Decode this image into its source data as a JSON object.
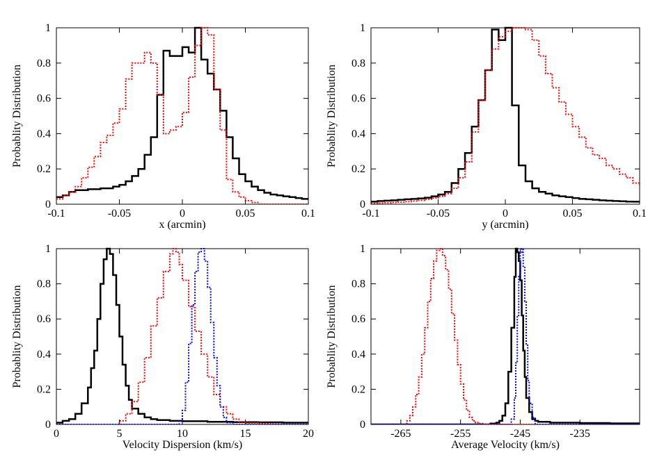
{
  "chart_data": [
    {
      "type": "line",
      "step": true,
      "xlabel": "x (arcmin)",
      "ylabel": "Probablity Distribution",
      "xlim": [
        -0.1,
        0.1
      ],
      "ylim": [
        0,
        1
      ],
      "xticks": [
        -0.1,
        -0.05,
        0,
        0.05,
        0.1
      ],
      "xtick_labels": [
        "-0.1",
        "-0.05",
        "0",
        "0.05",
        "0.1"
      ],
      "yticks": [
        0,
        0.2,
        0.4,
        0.6,
        0.8,
        1
      ],
      "ytick_labels": [
        "0",
        "0.2",
        "0.4",
        "0.6",
        "0.8",
        "1"
      ],
      "series": [
        {
          "color": "#000000",
          "dash": "solid",
          "width": 2.5,
          "x": [
            -0.1,
            -0.095,
            -0.09,
            -0.085,
            -0.08,
            -0.075,
            -0.07,
            -0.065,
            -0.06,
            -0.055,
            -0.05,
            -0.045,
            -0.04,
            -0.035,
            -0.03,
            -0.025,
            -0.02,
            -0.015,
            -0.01,
            -0.005,
            0,
            0.005,
            0.01,
            0.015,
            0.02,
            0.025,
            0.03,
            0.035,
            0.04,
            0.045,
            0.05,
            0.055,
            0.06,
            0.065,
            0.07,
            0.075,
            0.08,
            0.085,
            0.09,
            0.095,
            0.1
          ],
          "y": [
            0.04,
            0.05,
            0.07,
            0.08,
            0.08,
            0.085,
            0.085,
            0.09,
            0.09,
            0.1,
            0.11,
            0.13,
            0.16,
            0.2,
            0.28,
            0.38,
            0.62,
            0.87,
            0.84,
            0.84,
            0.89,
            0.86,
            1.0,
            0.82,
            0.74,
            0.65,
            0.53,
            0.38,
            0.26,
            0.17,
            0.13,
            0.1,
            0.08,
            0.065,
            0.055,
            0.05,
            0.045,
            0.04,
            0.035,
            0.03,
            0.03
          ]
        },
        {
          "color": "#ff0000",
          "dash": "dotted",
          "width": 2,
          "x": [
            -0.1,
            -0.095,
            -0.09,
            -0.085,
            -0.08,
            -0.075,
            -0.07,
            -0.065,
            -0.06,
            -0.055,
            -0.05,
            -0.045,
            -0.04,
            -0.035,
            -0.03,
            -0.025,
            -0.02,
            -0.015,
            -0.01,
            -0.005,
            0,
            0.005,
            0.01,
            0.015,
            0.02,
            0.025,
            0.03,
            0.035,
            0.04,
            0.045,
            0.05,
            0.055,
            0.06,
            0.065,
            0.07,
            0.075,
            0.08,
            0.085,
            0.09,
            0.095,
            0.1
          ],
          "y": [
            0.03,
            0.05,
            0.07,
            0.1,
            0.15,
            0.21,
            0.27,
            0.35,
            0.39,
            0.46,
            0.54,
            0.71,
            0.8,
            0.8,
            0.86,
            0.8,
            0.62,
            0.4,
            0.42,
            0.44,
            0.52,
            0.72,
            0.9,
            1.0,
            0.96,
            0.65,
            0.42,
            0.14,
            0.07,
            0.04,
            0.02,
            0.01,
            0.0,
            0.0,
            0.0,
            0.0,
            0.0,
            0.0,
            0.0,
            0.0,
            0.0
          ]
        }
      ]
    },
    {
      "type": "line",
      "step": true,
      "xlabel": "y (arcmin)",
      "ylabel": "Probablity Distribution",
      "xlim": [
        -0.1,
        0.1
      ],
      "ylim": [
        0,
        1
      ],
      "xticks": [
        -0.1,
        -0.05,
        0,
        0.05,
        0.1
      ],
      "xtick_labels": [
        "-0.1",
        "-0.05",
        "0",
        "0.05",
        "0.1"
      ],
      "yticks": [
        0,
        0.2,
        0.4,
        0.6,
        0.8,
        1
      ],
      "ytick_labels": [
        "0",
        "0.2",
        "0.4",
        "0.6",
        "0.8",
        "1"
      ],
      "series": [
        {
          "color": "#000000",
          "dash": "solid",
          "width": 2.5,
          "x": [
            -0.1,
            -0.095,
            -0.09,
            -0.085,
            -0.08,
            -0.075,
            -0.07,
            -0.065,
            -0.06,
            -0.055,
            -0.05,
            -0.045,
            -0.04,
            -0.035,
            -0.03,
            -0.025,
            -0.02,
            -0.015,
            -0.01,
            -0.005,
            0,
            0.005,
            0.01,
            0.015,
            0.02,
            0.025,
            0.03,
            0.035,
            0.04,
            0.045,
            0.05,
            0.055,
            0.06,
            0.065,
            0.07,
            0.075,
            0.08,
            0.085,
            0.09,
            0.095,
            0.1
          ],
          "y": [
            0.015,
            0.018,
            0.02,
            0.022,
            0.025,
            0.028,
            0.03,
            0.033,
            0.037,
            0.045,
            0.055,
            0.07,
            0.12,
            0.2,
            0.29,
            0.44,
            0.59,
            0.76,
            0.99,
            0.93,
            1.0,
            0.56,
            0.22,
            0.13,
            0.09,
            0.07,
            0.06,
            0.05,
            0.045,
            0.04,
            0.035,
            0.03,
            0.028,
            0.025,
            0.022,
            0.02,
            0.018,
            0.017,
            0.015,
            0.014,
            0.012
          ]
        },
        {
          "color": "#ff0000",
          "dash": "dotted",
          "width": 2,
          "x": [
            -0.1,
            -0.095,
            -0.09,
            -0.085,
            -0.08,
            -0.075,
            -0.07,
            -0.065,
            -0.06,
            -0.055,
            -0.05,
            -0.045,
            -0.04,
            -0.035,
            -0.03,
            -0.025,
            -0.02,
            -0.015,
            -0.01,
            -0.005,
            0,
            0.005,
            0.01,
            0.015,
            0.02,
            0.025,
            0.03,
            0.035,
            0.04,
            0.045,
            0.05,
            0.055,
            0.06,
            0.065,
            0.07,
            0.075,
            0.08,
            0.085,
            0.09,
            0.095,
            0.1
          ],
          "y": [
            0.005,
            0.007,
            0.008,
            0.01,
            0.012,
            0.015,
            0.018,
            0.022,
            0.028,
            0.035,
            0.045,
            0.06,
            0.09,
            0.15,
            0.24,
            0.41,
            0.59,
            0.76,
            0.88,
            0.95,
            0.98,
            1.0,
            1.0,
            0.99,
            0.93,
            0.84,
            0.74,
            0.66,
            0.58,
            0.51,
            0.44,
            0.38,
            0.32,
            0.28,
            0.26,
            0.22,
            0.2,
            0.17,
            0.15,
            0.12,
            0.1
          ]
        }
      ]
    },
    {
      "type": "line",
      "step": true,
      "xlabel": "Velocity Dispersion (km/s)",
      "ylabel": "Probablity Distribution",
      "xlim": [
        0,
        20
      ],
      "ylim": [
        0,
        1
      ],
      "xticks": [
        0,
        5,
        10,
        15,
        20
      ],
      "xtick_labels": [
        "0",
        "5",
        "10",
        "15",
        "20"
      ],
      "yticks": [
        0,
        0.2,
        0.4,
        0.6,
        0.8,
        1
      ],
      "ytick_labels": [
        "0",
        "0.2",
        "0.4",
        "0.6",
        "0.8",
        "1"
      ],
      "series": [
        {
          "color": "#000000",
          "dash": "solid",
          "width": 2.5,
          "x": [
            0,
            0.5,
            1,
            1.5,
            2,
            2.5,
            2.75,
            3,
            3.25,
            3.5,
            3.75,
            4,
            4.25,
            4.5,
            4.75,
            5,
            5.25,
            5.5,
            5.75,
            6,
            6.5,
            7,
            7.5,
            8,
            9,
            10,
            12,
            14,
            16,
            18,
            20
          ],
          "y": [
            0.01,
            0.02,
            0.03,
            0.06,
            0.12,
            0.21,
            0.32,
            0.42,
            0.6,
            0.8,
            0.94,
            1.0,
            0.97,
            0.85,
            0.68,
            0.5,
            0.34,
            0.22,
            0.14,
            0.09,
            0.06,
            0.04,
            0.03,
            0.025,
            0.02,
            0.018,
            0.015,
            0.013,
            0.012,
            0.01,
            0.01
          ]
        },
        {
          "color": "#ff0000",
          "dash": "dotted",
          "width": 2,
          "x": [
            0,
            4.5,
            5,
            5.5,
            6,
            6.5,
            7,
            7.5,
            8,
            8.5,
            9,
            9.25,
            9.5,
            9.75,
            10,
            10.5,
            11,
            11.5,
            12,
            12.5,
            13,
            13.5,
            14,
            14.5,
            15,
            16,
            17,
            18,
            20
          ],
          "y": [
            0.0,
            0.0,
            0.02,
            0.06,
            0.13,
            0.24,
            0.38,
            0.56,
            0.72,
            0.87,
            0.97,
            1.0,
            0.98,
            0.91,
            0.82,
            0.67,
            0.53,
            0.4,
            0.27,
            0.17,
            0.1,
            0.06,
            0.03,
            0.015,
            0.008,
            0.004,
            0.002,
            0.0,
            0.0
          ]
        },
        {
          "color": "#0000ff",
          "dash": "dotted",
          "width": 2,
          "x": [
            0,
            9.5,
            9.75,
            10,
            10.25,
            10.5,
            10.75,
            11,
            11.25,
            11.5,
            11.75,
            12,
            12.25,
            12.5,
            12.75,
            13,
            13.25,
            13.5,
            14,
            20
          ],
          "y": [
            0.0,
            0.0,
            0.02,
            0.08,
            0.24,
            0.46,
            0.68,
            0.87,
            0.98,
            1.0,
            0.93,
            0.78,
            0.58,
            0.38,
            0.22,
            0.1,
            0.04,
            0.01,
            0.0,
            0.0
          ]
        }
      ]
    },
    {
      "type": "line",
      "step": true,
      "xlabel": "Average Velocity (km/s)",
      "ylabel": "Probablity Distribution",
      "xlim": [
        -270,
        -225
      ],
      "ylim": [
        0,
        1
      ],
      "xticks": [
        -265,
        -255,
        -245,
        -235
      ],
      "xtick_labels": [
        "-265",
        "-255",
        "-245",
        "-235"
      ],
      "yticks": [
        0,
        0.2,
        0.4,
        0.6,
        0.8,
        1
      ],
      "ytick_labels": [
        "0",
        "0.2",
        "0.4",
        "0.6",
        "0.8",
        "1"
      ],
      "series": [
        {
          "color": "#000000",
          "dash": "solid",
          "width": 2.5,
          "x": [
            -270,
            -250,
            -249,
            -248.5,
            -248,
            -247.5,
            -247,
            -246.5,
            -246,
            -245.75,
            -245.5,
            -245.25,
            -245,
            -244.75,
            -244.5,
            -244.25,
            -244,
            -243.5,
            -243,
            -242.5,
            -242,
            -240,
            -235,
            -230,
            -225
          ],
          "y": [
            0.0,
            0.005,
            0.01,
            0.02,
            0.05,
            0.12,
            0.3,
            0.55,
            0.84,
            1.0,
            0.98,
            0.93,
            0.82,
            0.62,
            0.42,
            0.27,
            0.15,
            0.07,
            0.03,
            0.02,
            0.015,
            0.01,
            0.008,
            0.006,
            0.005
          ]
        },
        {
          "color": "#ff0000",
          "dash": "dotted",
          "width": 2,
          "x": [
            -270,
            -264.5,
            -264,
            -263.5,
            -263,
            -262.5,
            -262,
            -261.5,
            -261,
            -260.5,
            -260,
            -259.5,
            -259,
            -258.5,
            -258,
            -257.5,
            -257,
            -256.5,
            -256,
            -255.5,
            -255,
            -254.5,
            -254,
            -253.5,
            -253,
            -252.5,
            -252,
            -251,
            -250,
            -225
          ],
          "y": [
            0.0,
            0.0,
            0.02,
            0.05,
            0.1,
            0.17,
            0.27,
            0.4,
            0.55,
            0.7,
            0.83,
            0.93,
            0.99,
            1.0,
            0.96,
            0.88,
            0.77,
            0.63,
            0.48,
            0.34,
            0.23,
            0.14,
            0.08,
            0.04,
            0.02,
            0.01,
            0.005,
            0.0,
            0.0,
            0.0
          ]
        },
        {
          "color": "#0000ff",
          "dash": "dotted",
          "width": 2,
          "x": [
            -270,
            -247,
            -246.5,
            -246,
            -245.75,
            -245.5,
            -245.25,
            -245,
            -244.75,
            -244.5,
            -244.25,
            -244,
            -243.75,
            -243.5,
            -243,
            -242.5,
            -225
          ],
          "y": [
            0.0,
            0.0,
            0.03,
            0.15,
            0.35,
            0.62,
            0.85,
            0.98,
            1.0,
            0.9,
            0.7,
            0.45,
            0.25,
            0.12,
            0.04,
            0.0,
            0.0
          ]
        }
      ]
    }
  ]
}
